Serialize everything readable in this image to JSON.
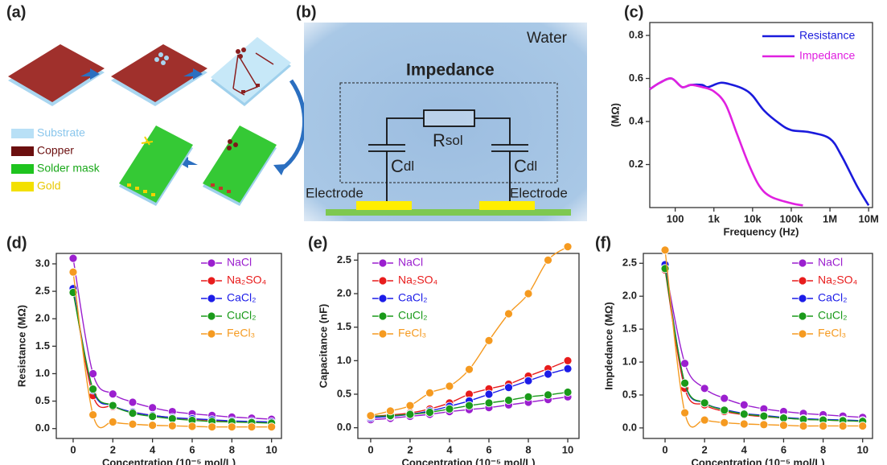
{
  "panel_a": {
    "label": "(a)",
    "legend": [
      "Substrate",
      "Copper",
      "Solder mask",
      "Gold"
    ]
  },
  "panel_b": {
    "label": "(b)",
    "medium": "Water",
    "title": "Impedance",
    "resistor": {
      "text": "R",
      "subscript": "sol"
    },
    "capacitors": [
      {
        "text": "C",
        "subscript": "dl"
      },
      {
        "text": "C",
        "subscript": "dl"
      }
    ],
    "electrodes": [
      "Electrode",
      "Electrode"
    ]
  },
  "chart_data": [
    {
      "type": "line",
      "label": "(c)",
      "xlabel": "Frequency (Hz)",
      "ylabel": "(MΩ)",
      "xscale": "log",
      "xlim": [
        22,
        12600000
      ],
      "ylim": [
        0,
        0.86
      ],
      "xticks": [
        100,
        {
          "value": 1000,
          "label": "1k"
        },
        {
          "value": 10000,
          "label": "10k"
        },
        {
          "value": 100000,
          "label": "100k"
        },
        {
          "value": 1000000,
          "label": "1M"
        },
        {
          "value": 10000000,
          "label": "10M"
        }
      ],
      "yticks": [
        0.2,
        0.4,
        0.6,
        0.8
      ],
      "markers": false,
      "series": [
        {
          "name": "Resistance",
          "color": "#1a1adc",
          "x": [
            22,
            40,
            80,
            150,
            250,
            500,
            700,
            1500,
            3000,
            6000,
            10000,
            20000,
            50000,
            100000,
            300000,
            1000000,
            2000000,
            5000000,
            10000000
          ],
          "values": [
            0.55,
            0.58,
            0.6,
            0.56,
            0.57,
            0.57,
            0.56,
            0.58,
            0.57,
            0.55,
            0.52,
            0.45,
            0.39,
            0.36,
            0.35,
            0.32,
            0.24,
            0.1,
            0.01
          ]
        },
        {
          "name": "Impedance",
          "color": "#e020e0",
          "x": [
            22,
            40,
            80,
            150,
            250,
            500,
            1000,
            2000,
            4000,
            8000,
            15000,
            30000,
            100000,
            200000
          ],
          "values": [
            0.55,
            0.58,
            0.6,
            0.56,
            0.57,
            0.56,
            0.54,
            0.48,
            0.34,
            0.2,
            0.1,
            0.05,
            0.02,
            0.01
          ]
        }
      ]
    },
    {
      "type": "line",
      "label": "(d)",
      "xlabel": "Concentration (10⁻⁵ mol/L)",
      "ylabel": "Resistance (MΩ)",
      "x": [
        0,
        1,
        2,
        3,
        4,
        5,
        6,
        7,
        8,
        9,
        10
      ],
      "xlim": [
        -0.85,
        10.5
      ],
      "ylim": [
        -0.18,
        3.19
      ],
      "xticks": [
        0,
        2,
        4,
        6,
        8,
        10
      ],
      "yticks": [
        {
          "value": 0,
          "label": "0.0"
        },
        0.5,
        {
          "value": 1,
          "label": "1.0"
        },
        1.5,
        {
          "value": 2,
          "label": "2.0"
        },
        2.5,
        {
          "value": 3,
          "label": "3.0"
        }
      ],
      "markers": true,
      "series": [
        {
          "name": "NaCl",
          "color": "#9b1fcf",
          "values": [
            3.1,
            1.0,
            0.63,
            0.48,
            0.38,
            0.31,
            0.27,
            0.24,
            0.21,
            0.19,
            0.17
          ]
        },
        {
          "name": "Na₂SO₄",
          "color": "#e81c1c",
          "values": [
            2.55,
            0.6,
            0.4,
            0.3,
            0.24,
            0.2,
            0.17,
            0.15,
            0.13,
            0.12,
            0.11
          ]
        },
        {
          "name": "CaCl₂",
          "color": "#1c1ce8",
          "values": [
            2.55,
            0.7,
            0.42,
            0.3,
            0.24,
            0.2,
            0.18,
            0.16,
            0.14,
            0.13,
            0.12
          ]
        },
        {
          "name": "CuCl₂",
          "color": "#1a9a1a",
          "values": [
            2.48,
            0.72,
            0.42,
            0.28,
            0.22,
            0.18,
            0.15,
            0.13,
            0.12,
            0.11,
            0.1
          ]
        },
        {
          "name": "FeCl₃",
          "color": "#f59a20",
          "values": [
            2.85,
            0.25,
            0.12,
            0.08,
            0.06,
            0.05,
            0.04,
            0.03,
            0.03,
            0.03,
            0.03
          ]
        }
      ]
    },
    {
      "type": "line",
      "label": "(e)",
      "xlabel": "Concentration (10⁻⁵ mol/L)",
      "ylabel": "Capacitance (nF)",
      "x": [
        0,
        1,
        2,
        3,
        4,
        5,
        6,
        7,
        8,
        9,
        10
      ],
      "xlim": [
        -0.65,
        10.57
      ],
      "ylim": [
        -0.16,
        2.6
      ],
      "xticks": [
        0,
        2,
        4,
        6,
        8,
        10
      ],
      "yticks": [
        {
          "value": 0,
          "label": "0.0"
        },
        0.5,
        {
          "value": 1,
          "label": "1.0"
        },
        1.5,
        {
          "value": 2,
          "label": "2.0"
        },
        2.5
      ],
      "markers": true,
      "series": [
        {
          "name": "NaCl",
          "color": "#9b1fcf",
          "values": [
            0.12,
            0.14,
            0.17,
            0.2,
            0.24,
            0.27,
            0.3,
            0.34,
            0.38,
            0.42,
            0.46
          ]
        },
        {
          "name": "Na₂SO₄",
          "color": "#e81c1c",
          "values": [
            0.17,
            0.19,
            0.22,
            0.28,
            0.37,
            0.5,
            0.58,
            0.65,
            0.77,
            0.88,
            1.0
          ]
        },
        {
          "name": "CaCl₂",
          "color": "#1c1ce8",
          "values": [
            0.15,
            0.17,
            0.2,
            0.25,
            0.32,
            0.4,
            0.5,
            0.6,
            0.7,
            0.8,
            0.88
          ]
        },
        {
          "name": "CuCl₂",
          "color": "#1a9a1a",
          "values": [
            0.17,
            0.18,
            0.2,
            0.23,
            0.28,
            0.33,
            0.37,
            0.41,
            0.46,
            0.49,
            0.53
          ]
        },
        {
          "name": "FeCl₃",
          "color": "#f59a20",
          "values": [
            0.18,
            0.25,
            0.33,
            0.52,
            0.62,
            0.87,
            1.3,
            1.7,
            2.0,
            2.5,
            2.7
          ]
        }
      ]
    },
    {
      "type": "line",
      "label": "(f)",
      "xlabel": "Concentration (10⁻⁵ mol/L)",
      "ylabel": "Impdedance (MΩ)",
      "x": [
        0,
        1,
        2,
        3,
        4,
        5,
        6,
        7,
        8,
        9,
        10
      ],
      "xlim": [
        -1.1,
        10.5
      ],
      "ylim": [
        -0.16,
        2.65
      ],
      "xticks": [
        0,
        2,
        4,
        6,
        8,
        10
      ],
      "yticks": [
        {
          "value": 0,
          "label": "0.0"
        },
        0.5,
        {
          "value": 1,
          "label": "1.0"
        },
        1.5,
        {
          "value": 2,
          "label": "2.0"
        },
        2.5
      ],
      "markers": true,
      "series": [
        {
          "name": "NaCl",
          "color": "#9b1fcf",
          "values": [
            2.45,
            0.98,
            0.6,
            0.45,
            0.35,
            0.29,
            0.25,
            0.22,
            0.2,
            0.18,
            0.16
          ]
        },
        {
          "name": "Na₂SO₄",
          "color": "#e81c1c",
          "values": [
            2.4,
            0.6,
            0.35,
            0.25,
            0.2,
            0.17,
            0.15,
            0.13,
            0.12,
            0.11,
            0.1
          ]
        },
        {
          "name": "CaCl₂",
          "color": "#1c1ce8",
          "values": [
            2.48,
            0.67,
            0.38,
            0.28,
            0.22,
            0.19,
            0.16,
            0.14,
            0.13,
            0.12,
            0.11
          ]
        },
        {
          "name": "CuCl₂",
          "color": "#1a9a1a",
          "values": [
            2.42,
            0.68,
            0.38,
            0.27,
            0.21,
            0.18,
            0.15,
            0.13,
            0.12,
            0.11,
            0.1
          ]
        },
        {
          "name": "FeCl₃",
          "color": "#f59a20",
          "values": [
            2.7,
            0.23,
            0.12,
            0.08,
            0.06,
            0.05,
            0.04,
            0.03,
            0.03,
            0.03,
            0.03
          ]
        }
      ]
    }
  ]
}
